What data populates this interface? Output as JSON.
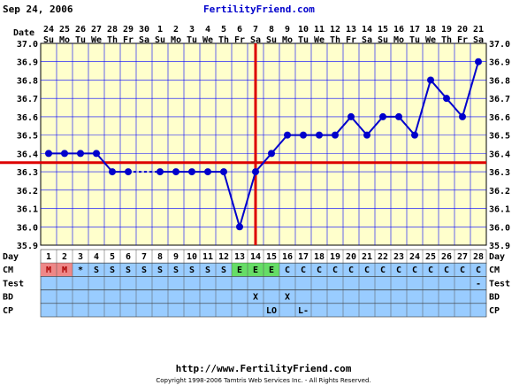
{
  "header": {
    "date": "Sep 24, 2006",
    "site": "FertilityFriend.com"
  },
  "footer": {
    "url": "http://www.FertilityFriend.com",
    "copyright": "Copyright 1998-2006 Tamtris Web Services Inc. - All Rights Reserved."
  },
  "colors": {
    "chart_bg": "#ffffcc",
    "temp_line": "#0000cc",
    "coverline": "#dd0000",
    "row_bg": "#99ccff",
    "menstruation": "#ee8888",
    "egg_white": "#66dd66",
    "day_row_bg": "#ffffff"
  },
  "row_labels": {
    "date": "Date",
    "day": "Day",
    "cm": "CM",
    "test": "Test",
    "bd": "BD",
    "cp": "CP"
  },
  "chart_data": {
    "type": "line",
    "title": "",
    "ylabel": "",
    "ylim": [
      35.9,
      37.0
    ],
    "yticks": [
      "37.0",
      "36.9",
      "36.8",
      "36.7",
      "36.6",
      "36.5",
      "36.4",
      "36.3",
      "36.2",
      "36.1",
      "36.0",
      "35.9"
    ],
    "grid": true,
    "date_row": [
      "24",
      "25",
      "26",
      "27",
      "28",
      "29",
      "30",
      "1",
      "2",
      "3",
      "4",
      "5",
      "6",
      "7",
      "8",
      "9",
      "10",
      "11",
      "12",
      "13",
      "14",
      "15",
      "16",
      "17",
      "18",
      "19",
      "20",
      "21"
    ],
    "weekday_row": [
      "Su",
      "Mo",
      "Tu",
      "We",
      "Th",
      "Fr",
      "Sa",
      "Su",
      "Mo",
      "Tu",
      "We",
      "Th",
      "Fr",
      "Sa",
      "Su",
      "Mo",
      "Tu",
      "We",
      "Th",
      "Fr",
      "Sa",
      "Su",
      "Mo",
      "Tu",
      "We",
      "Th",
      "Fr",
      "Sa"
    ],
    "cycle_days": [
      "1",
      "2",
      "3",
      "4",
      "5",
      "6",
      "7",
      "8",
      "9",
      "10",
      "11",
      "12",
      "13",
      "14",
      "15",
      "16",
      "17",
      "18",
      "19",
      "20",
      "21",
      "22",
      "23",
      "24",
      "25",
      "26",
      "27",
      "28"
    ],
    "temperatures": [
      36.4,
      36.4,
      36.4,
      36.4,
      36.3,
      36.3,
      null,
      36.3,
      36.3,
      36.3,
      36.3,
      36.3,
      36.0,
      36.3,
      36.4,
      36.5,
      36.5,
      36.5,
      36.5,
      36.6,
      36.5,
      36.6,
      36.6,
      36.5,
      36.8,
      36.7,
      36.6,
      36.9
    ],
    "coverline": 36.35,
    "ovulation_day": 14,
    "cm": [
      "M",
      "M",
      "*",
      "S",
      "S",
      "S",
      "S",
      "S",
      "S",
      "S",
      "S",
      "S",
      "E",
      "E",
      "E",
      "C",
      "C",
      "C",
      "C",
      "C",
      "C",
      "C",
      "C",
      "C",
      "C",
      "C",
      "C",
      "C"
    ],
    "test": [
      "",
      "",
      "",
      "",
      "",
      "",
      "",
      "",
      "",
      "",
      "",
      "",
      "",
      "",
      "",
      "",
      "",
      "",
      "",
      "",
      "",
      "",
      "",
      "",
      "",
      "",
      "",
      "-"
    ],
    "bd": [
      "",
      "",
      "",
      "",
      "",
      "",
      "",
      "",
      "",
      "",
      "",
      "",
      "",
      "X",
      "",
      "X",
      "",
      "",
      "",
      "",
      "",
      "",
      "",
      "",
      "",
      "",
      "",
      ""
    ],
    "cp": [
      "",
      "",
      "",
      "",
      "",
      "",
      "",
      "",
      "",
      "",
      "",
      "",
      "",
      "",
      "LO",
      "",
      "L-",
      "",
      "",
      "",
      "",
      "",
      "",
      "",
      "",
      "",
      "",
      ""
    ]
  }
}
